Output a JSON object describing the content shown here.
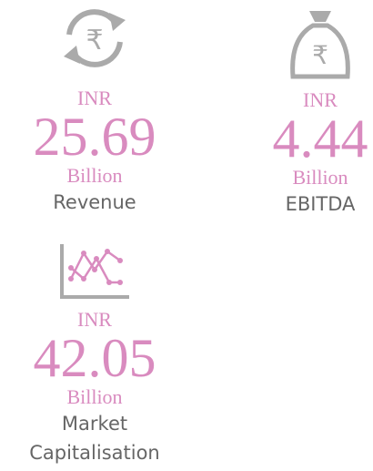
{
  "items": [
    {
      "icon_symbol": "₹",
      "currency": "INR",
      "value": "25.69",
      "unit": "Billion",
      "label_lines": [
        "Revenue"
      ]
    },
    {
      "icon_symbol": "₹",
      "currency": "INR",
      "value": "4.44",
      "unit": "Billion",
      "label_lines": [
        "EBITDA"
      ]
    },
    {
      "currency": "INR",
      "value": "42.05",
      "unit": "Billion",
      "label_lines": [
        "Market",
        "Capitalisation"
      ]
    }
  ]
}
